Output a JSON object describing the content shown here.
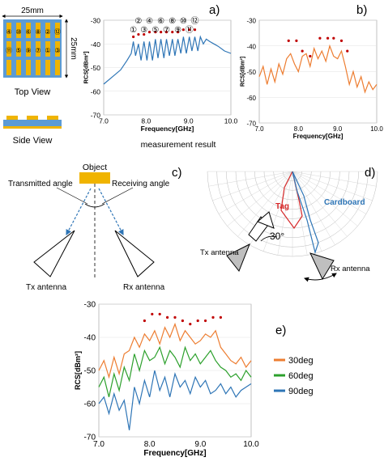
{
  "panel_a": {
    "label": "a)",
    "top_view_label": "Top View",
    "side_view_label": "Side View",
    "width_label": "25mm",
    "height_label": "25mm",
    "resonator_numbers": [
      "④",
      "⑩",
      "⑥",
      "⑧",
      "②",
      "⑫",
      "⑪",
      "⑤",
      "⑨",
      "⑦",
      "①",
      "③"
    ],
    "peak_markers": [
      "①",
      "②",
      "③",
      "④",
      "⑤",
      "⑥",
      "⑦",
      "⑧",
      "⑨",
      "⑩",
      "⑪",
      "⑫"
    ],
    "caption": "measurement result",
    "color_substrate": "#5b9bd5",
    "color_metal": "#f0b400"
  },
  "panel_b": {
    "label": "b)"
  },
  "panel_c": {
    "label": "c)",
    "object_label": "Object",
    "transmitted_label": "Transmitted angle",
    "receiving_label": "Receiving angle",
    "tx_label": "Tx antenna",
    "rx_label": "Rx antenna"
  },
  "panel_d": {
    "label": "d)",
    "tag_label": "Tag",
    "cardboard_label": "Cardboard",
    "angle_label": "30°",
    "tx_label": "Tx antenna",
    "rx_label": "Rx antenna",
    "tag_color": "#d62728",
    "cardboard_color": "#2e75b6"
  },
  "panel_e": {
    "label": "e)"
  },
  "chart_data": [
    {
      "type": "line",
      "panel": "a",
      "xlabel": "Frequency[GHz]",
      "ylabel": "RCS[dBm²]",
      "xlim": [
        7.0,
        10.0
      ],
      "ylim": [
        -70,
        -30
      ],
      "xticks": [
        "7.0",
        "8.0",
        "9.0",
        "10.0"
      ],
      "yticks": [
        "-30",
        "-40",
        "-50",
        "-60",
        "-70"
      ],
      "series": [
        {
          "color": "#2e75b6",
          "x": [
            7.0,
            7.2,
            7.4,
            7.55,
            7.65,
            7.7,
            7.75,
            7.82,
            7.88,
            7.95,
            8.02,
            8.08,
            8.15,
            8.22,
            8.28,
            8.35,
            8.42,
            8.48,
            8.55,
            8.62,
            8.68,
            8.75,
            8.82,
            8.88,
            8.95,
            9.02,
            9.08,
            9.15,
            9.22,
            9.28,
            9.35,
            9.42,
            9.5,
            9.6,
            9.7,
            9.85,
            10.0
          ],
          "y": [
            -57,
            -54,
            -51,
            -47,
            -44,
            -39,
            -45,
            -40,
            -47,
            -39,
            -47,
            -39,
            -47,
            -38,
            -46,
            -38,
            -46,
            -38,
            -45,
            -38,
            -45,
            -38,
            -44,
            -37,
            -44,
            -37,
            -43,
            -37,
            -43,
            -37,
            -40,
            -38,
            -39,
            -40,
            -41,
            -43,
            -44
          ]
        },
        {
          "color": "#c00000",
          "mode": "markers",
          "x": [
            7.7,
            7.82,
            7.95,
            8.08,
            8.22,
            8.35,
            8.48,
            8.62,
            8.75,
            8.88,
            9.02,
            9.15
          ],
          "y": [
            -37,
            -36,
            -36,
            -35,
            -35,
            -35,
            -35,
            -35,
            -35,
            -34,
            -34,
            -34
          ]
        }
      ]
    },
    {
      "type": "line",
      "panel": "b",
      "xlabel": "Frequency[GHz]",
      "ylabel": "RCS[dBm²]",
      "xlim": [
        7.0,
        10.0
      ],
      "ylim": [
        -70,
        -30
      ],
      "xticks": [
        "7.0",
        "8.0",
        "9.0",
        "10.0"
      ],
      "yticks": [
        "-30",
        "-40",
        "-50",
        "-60",
        "-70"
      ],
      "series": [
        {
          "color": "#ed7d31",
          "x": [
            7.0,
            7.1,
            7.2,
            7.3,
            7.4,
            7.5,
            7.6,
            7.7,
            7.8,
            7.9,
            8.0,
            8.1,
            8.2,
            8.3,
            8.4,
            8.5,
            8.6,
            8.7,
            8.8,
            8.9,
            9.0,
            9.1,
            9.2,
            9.3,
            9.4,
            9.5,
            9.6,
            9.7,
            9.8,
            9.9,
            10.0
          ],
          "y": [
            -52,
            -48,
            -55,
            -49,
            -54,
            -47,
            -51,
            -45,
            -43,
            -47,
            -50,
            -44,
            -43,
            -48,
            -41,
            -45,
            -42,
            -46,
            -40,
            -44,
            -45,
            -42,
            -48,
            -55,
            -50,
            -56,
            -52,
            -58,
            -54,
            -57,
            -55
          ]
        },
        {
          "color": "#c00000",
          "mode": "markers",
          "x": [
            7.75,
            7.95,
            8.1,
            8.3,
            8.55,
            8.75,
            8.9,
            9.1,
            9.25
          ],
          "y": [
            -38,
            -38,
            -42,
            -44,
            -37,
            -37,
            -37,
            -38,
            -42
          ]
        }
      ]
    },
    {
      "type": "line",
      "panel": "e",
      "xlabel": "Frequency[GHz]",
      "ylabel": "RCS[dBm²]",
      "xlim": [
        7.0,
        10.0
      ],
      "ylim": [
        -70,
        -30
      ],
      "xticks": [
        "7.0",
        "8.0",
        "9.0",
        "10.0"
      ],
      "yticks": [
        "-30",
        "-40",
        "-50",
        "-60",
        "-70"
      ],
      "legend_position": "right",
      "series": [
        {
          "name": "30deg",
          "color": "#ed7d31",
          "x": [
            7.0,
            7.1,
            7.2,
            7.3,
            7.4,
            7.5,
            7.6,
            7.7,
            7.8,
            7.9,
            8.0,
            8.1,
            8.2,
            8.3,
            8.4,
            8.5,
            8.6,
            8.7,
            8.8,
            8.9,
            9.0,
            9.1,
            9.2,
            9.3,
            9.4,
            9.5,
            9.6,
            9.7,
            9.8,
            9.9,
            10.0
          ],
          "y": [
            -50,
            -47,
            -52,
            -46,
            -51,
            -45,
            -44,
            -40,
            -43,
            -39,
            -41,
            -38,
            -42,
            -37,
            -40,
            -36,
            -41,
            -38,
            -40,
            -42,
            -41,
            -39,
            -40,
            -38,
            -43,
            -45,
            -47,
            -48,
            -46,
            -49,
            -47
          ]
        },
        {
          "name": "60deg",
          "color": "#2ca02c",
          "x": [
            7.0,
            7.1,
            7.2,
            7.3,
            7.4,
            7.5,
            7.6,
            7.7,
            7.8,
            7.9,
            8.0,
            8.1,
            8.2,
            8.3,
            8.4,
            8.5,
            8.6,
            8.7,
            8.8,
            8.9,
            9.0,
            9.1,
            9.2,
            9.3,
            9.4,
            9.5,
            9.6,
            9.7,
            9.8,
            9.9,
            10.0
          ],
          "y": [
            -55,
            -52,
            -58,
            -51,
            -56,
            -49,
            -53,
            -45,
            -50,
            -44,
            -47,
            -46,
            -43,
            -48,
            -44,
            -46,
            -49,
            -43,
            -47,
            -45,
            -48,
            -46,
            -44,
            -47,
            -49,
            -50,
            -52,
            -51,
            -53,
            -50,
            -52
          ]
        },
        {
          "name": "90deg",
          "color": "#2e75b6",
          "x": [
            7.0,
            7.1,
            7.2,
            7.3,
            7.4,
            7.5,
            7.6,
            7.7,
            7.8,
            7.9,
            8.0,
            8.1,
            8.2,
            8.3,
            8.4,
            8.5,
            8.6,
            8.7,
            8.8,
            8.9,
            9.0,
            9.1,
            9.2,
            9.3,
            9.4,
            9.5,
            9.6,
            9.7,
            9.8,
            9.9,
            10.0
          ],
          "y": [
            -60,
            -58,
            -63,
            -57,
            -62,
            -59,
            -68,
            -55,
            -60,
            -53,
            -58,
            -50,
            -56,
            -52,
            -58,
            -51,
            -55,
            -53,
            -57,
            -52,
            -55,
            -53,
            -57,
            -56,
            -54,
            -57,
            -55,
            -58,
            -56,
            -55,
            -54
          ]
        },
        {
          "color": "#c00000",
          "mode": "markers",
          "x": [
            7.9,
            8.05,
            8.2,
            8.35,
            8.5,
            8.65,
            8.8,
            8.95,
            9.1,
            9.25,
            9.4
          ],
          "y": [
            -35,
            -33,
            -33,
            -34,
            -34,
            -35,
            -36,
            -35,
            -35,
            -34,
            -34
          ]
        }
      ]
    }
  ]
}
